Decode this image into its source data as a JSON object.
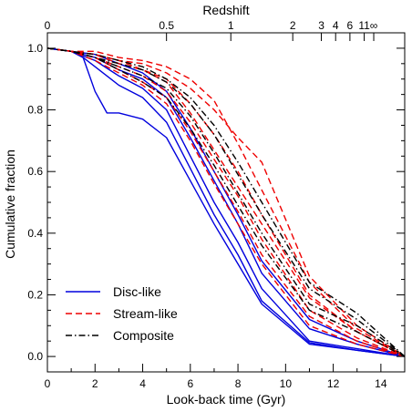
{
  "chart_data": {
    "type": "line",
    "xlabel": "Look-back time (Gyr)",
    "ylabel": "Cumulative fraction",
    "top_axis_label": "Redshift",
    "xlim": [
      0,
      15
    ],
    "ylim": [
      -0.05,
      1.05
    ],
    "x_ticks": [
      0,
      2,
      4,
      6,
      8,
      10,
      12,
      14
    ],
    "x_tick_labels": [
      "0",
      "2",
      "4",
      "6",
      "8",
      "10",
      "12",
      "14"
    ],
    "y_ticks": [
      0.0,
      0.2,
      0.4,
      0.6,
      0.8,
      1.0
    ],
    "y_tick_labels": [
      "0.0",
      "0.2",
      "0.4",
      "0.6",
      "0.8",
      "1.0"
    ],
    "top_ticks": [
      {
        "label": "0",
        "lookback": 0.0
      },
      {
        "label": "0.5",
        "lookback": 5.0
      },
      {
        "label": "1",
        "lookback": 7.7
      },
      {
        "label": "2",
        "lookback": 10.3
      },
      {
        "label": "3",
        "lookback": 11.5
      },
      {
        "label": "4",
        "lookback": 12.1
      },
      {
        "label": "6",
        "lookback": 12.7
      },
      {
        "label": "11",
        "lookback": 13.3
      },
      {
        "label": "∞",
        "lookback": 13.7
      }
    ],
    "legend": {
      "placement": "bottom-left",
      "entries": [
        {
          "label": "Disc-like",
          "group": "disc"
        },
        {
          "label": "Stream-like",
          "group": "stream"
        },
        {
          "label": "Composite",
          "group": "composite"
        }
      ]
    },
    "styles": {
      "disc": {
        "color": "#0000dd",
        "dash": "solid"
      },
      "stream": {
        "color": "#ee0000",
        "dash": "dashed"
      },
      "composite": {
        "color": "#000000",
        "dash": "dashdot"
      }
    },
    "series": [
      {
        "group": "disc",
        "x": [
          0,
          1,
          1.5,
          2,
          2.5,
          3,
          4,
          5,
          6,
          7,
          8,
          9,
          11,
          13,
          15
        ],
        "y": [
          1.0,
          0.99,
          0.97,
          0.86,
          0.79,
          0.79,
          0.77,
          0.71,
          0.57,
          0.43,
          0.3,
          0.17,
          0.04,
          0.02,
          0.0
        ]
      },
      {
        "group": "disc",
        "x": [
          0,
          1,
          1.5,
          2,
          3,
          4,
          5,
          6,
          7,
          8,
          9,
          11,
          13,
          15
        ],
        "y": [
          1.0,
          0.99,
          0.97,
          0.94,
          0.88,
          0.84,
          0.76,
          0.61,
          0.46,
          0.33,
          0.18,
          0.045,
          0.02,
          0.0
        ]
      },
      {
        "group": "disc",
        "x": [
          0,
          1,
          2,
          3,
          4,
          5,
          6,
          7,
          8,
          9,
          11,
          13,
          15
        ],
        "y": [
          1.0,
          0.99,
          0.96,
          0.91,
          0.87,
          0.8,
          0.65,
          0.5,
          0.37,
          0.22,
          0.05,
          0.025,
          0.0
        ]
      },
      {
        "group": "disc",
        "x": [
          0,
          1,
          2,
          3,
          4,
          5,
          6,
          7,
          8,
          9,
          11,
          13,
          15
        ],
        "y": [
          1.0,
          0.99,
          0.97,
          0.93,
          0.9,
          0.84,
          0.71,
          0.57,
          0.43,
          0.27,
          0.09,
          0.04,
          0.0
        ]
      },
      {
        "group": "disc",
        "x": [
          0,
          1,
          2,
          3,
          4,
          5,
          6,
          7,
          8,
          9,
          11,
          13,
          15
        ],
        "y": [
          1.0,
          0.99,
          0.98,
          0.95,
          0.92,
          0.86,
          0.74,
          0.6,
          0.46,
          0.31,
          0.12,
          0.05,
          0.0
        ]
      },
      {
        "group": "stream",
        "x": [
          0,
          1,
          2,
          3,
          4,
          5,
          6,
          7,
          8,
          9,
          11,
          13,
          15
        ],
        "y": [
          1.0,
          0.99,
          0.98,
          0.96,
          0.95,
          0.92,
          0.87,
          0.8,
          0.71,
          0.63,
          0.26,
          0.1,
          0.0
        ]
      },
      {
        "group": "stream",
        "x": [
          0,
          1,
          2,
          3,
          4,
          5,
          6,
          7,
          8,
          9,
          11,
          13,
          15
        ],
        "y": [
          1.0,
          0.99,
          0.99,
          0.97,
          0.96,
          0.94,
          0.9,
          0.83,
          0.69,
          0.54,
          0.24,
          0.09,
          0.0
        ]
      },
      {
        "group": "stream",
        "x": [
          0,
          1,
          2,
          3,
          4,
          5,
          6,
          7,
          8,
          9,
          11,
          13,
          15
        ],
        "y": [
          1.0,
          0.99,
          0.98,
          0.95,
          0.93,
          0.9,
          0.82,
          0.72,
          0.6,
          0.46,
          0.2,
          0.08,
          0.0
        ]
      },
      {
        "group": "stream",
        "x": [
          0,
          1,
          2,
          3,
          4,
          5,
          6,
          7,
          8,
          9,
          11,
          13,
          15
        ],
        "y": [
          1.0,
          0.99,
          0.97,
          0.94,
          0.91,
          0.86,
          0.76,
          0.64,
          0.52,
          0.38,
          0.15,
          0.06,
          0.0
        ]
      },
      {
        "group": "stream",
        "x": [
          0,
          1,
          2,
          3,
          4,
          5,
          6,
          7,
          8,
          9,
          11,
          13,
          15
        ],
        "y": [
          1.0,
          0.99,
          0.98,
          0.96,
          0.93,
          0.89,
          0.79,
          0.67,
          0.55,
          0.43,
          0.19,
          0.08,
          0.0
        ]
      },
      {
        "group": "stream",
        "x": [
          0,
          1,
          2,
          3,
          4,
          5,
          6,
          7,
          8,
          9,
          11,
          13,
          15
        ],
        "y": [
          1.0,
          0.99,
          0.97,
          0.93,
          0.89,
          0.84,
          0.73,
          0.6,
          0.47,
          0.33,
          0.13,
          0.05,
          0.0
        ]
      },
      {
        "group": "stream",
        "x": [
          0,
          1,
          2,
          3,
          4,
          5,
          6,
          7,
          8,
          9,
          11,
          13,
          15
        ],
        "y": [
          1.0,
          0.99,
          0.96,
          0.92,
          0.88,
          0.82,
          0.7,
          0.56,
          0.43,
          0.3,
          0.1,
          0.04,
          0.0
        ]
      },
      {
        "group": "composite",
        "x": [
          0,
          1,
          2,
          3,
          4,
          5,
          6,
          7,
          8,
          9,
          11,
          13,
          15
        ],
        "y": [
          1.0,
          0.99,
          0.97,
          0.95,
          0.93,
          0.89,
          0.82,
          0.72,
          0.59,
          0.46,
          0.22,
          0.12,
          0.0
        ]
      },
      {
        "group": "composite",
        "x": [
          0,
          1,
          2,
          3,
          4,
          5,
          6,
          7,
          8,
          9,
          11,
          13,
          15
        ],
        "y": [
          1.0,
          0.99,
          0.98,
          0.96,
          0.94,
          0.9,
          0.84,
          0.75,
          0.63,
          0.5,
          0.24,
          0.14,
          0.0
        ]
      },
      {
        "group": "composite",
        "x": [
          0,
          1,
          2,
          3,
          4,
          5,
          6,
          7,
          8,
          9,
          11,
          13,
          15
        ],
        "y": [
          1.0,
          0.99,
          0.97,
          0.94,
          0.91,
          0.87,
          0.78,
          0.66,
          0.53,
          0.4,
          0.17,
          0.1,
          0.0
        ]
      },
      {
        "group": "composite",
        "x": [
          0,
          1,
          2,
          3,
          4,
          5,
          6,
          7,
          8,
          9,
          11,
          13,
          15
        ],
        "y": [
          1.0,
          0.99,
          0.97,
          0.93,
          0.89,
          0.84,
          0.74,
          0.62,
          0.49,
          0.36,
          0.15,
          0.08,
          0.0
        ]
      }
    ]
  }
}
